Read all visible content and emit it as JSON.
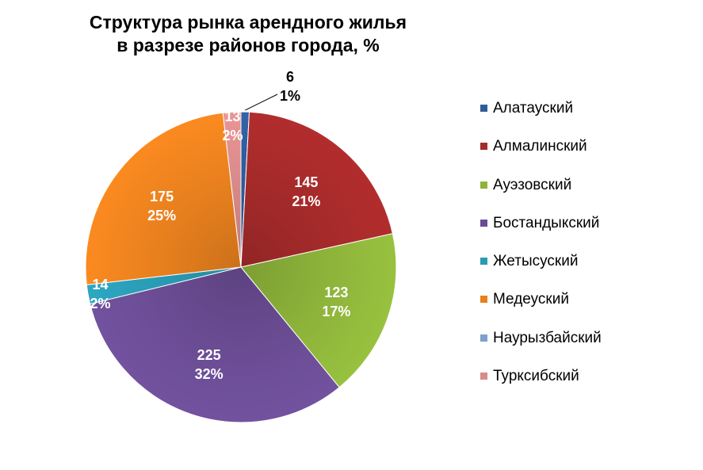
{
  "chart_data": {
    "type": "pie",
    "title": [
      "Структура рынка арендного жилья",
      "в разрезе районов города, %"
    ],
    "categories": [
      "Алатауский",
      "Алмалинский",
      "Ауэзовский",
      "Бостандыкский",
      "Жетысуский",
      "Медеуский",
      "Наурызбайский",
      "Турксибский"
    ],
    "values": [
      6,
      145,
      123,
      225,
      14,
      175,
      0,
      13
    ],
    "percent_labels": [
      "1%",
      "21%",
      "17%",
      "32%",
      "2%",
      "25%",
      "0%",
      "2%"
    ],
    "value_labels": [
      "6",
      "145",
      "123",
      "225",
      "14",
      "175",
      "",
      "13"
    ],
    "colors": [
      "#2E5C9A",
      "#A52A2A",
      "#8DB33A",
      "#6A4C93",
      "#2A9BB5",
      "#E8801E",
      "#7F9FCF",
      "#D98A8A"
    ],
    "label_colors": [
      "#000000",
      "#ffffff",
      "#ffffff",
      "#ffffff",
      "#ffffff",
      "#ffffff",
      "#ffffff",
      "#ffffff"
    ],
    "legend_position": "right"
  }
}
